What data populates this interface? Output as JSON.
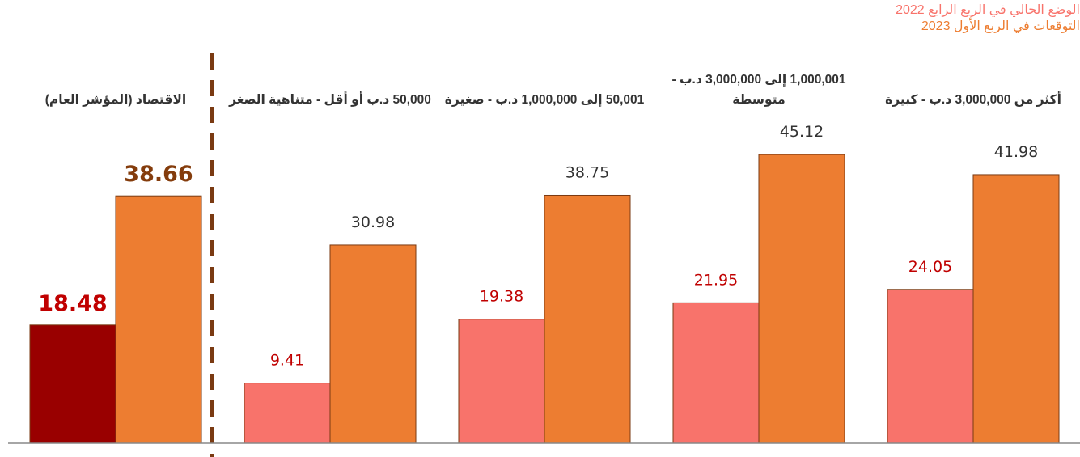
{
  "chart_data": {
    "type": "bar",
    "categories": [
      "الاقتصاد (المؤشر العام)",
      "50,000 د.ب أو أقل - متناهية الصغر",
      "50,001 إلى 1,000,000 د.ب - صغيرة",
      "1,000,001 إلى 3,000,000 د.ب - متوسطة",
      "أكثر من 3,000,000 د.ب - كبيرة"
    ],
    "series": [
      {
        "name": "الوضع الحالي في الربع الرابع 2022",
        "color": "#f8736b",
        "colors": [
          "#990000",
          "#f8736b",
          "#f8736b",
          "#f8736b",
          "#f8736b"
        ],
        "values": [
          18.48,
          9.41,
          19.38,
          21.95,
          24.05
        ]
      },
      {
        "name": "التوقعات في الربع الأول 2023",
        "color": "#ed7d31",
        "values": [
          38.66,
          30.98,
          38.75,
          45.12,
          41.98
        ]
      }
    ],
    "ylim": [
      0,
      50
    ]
  }
}
